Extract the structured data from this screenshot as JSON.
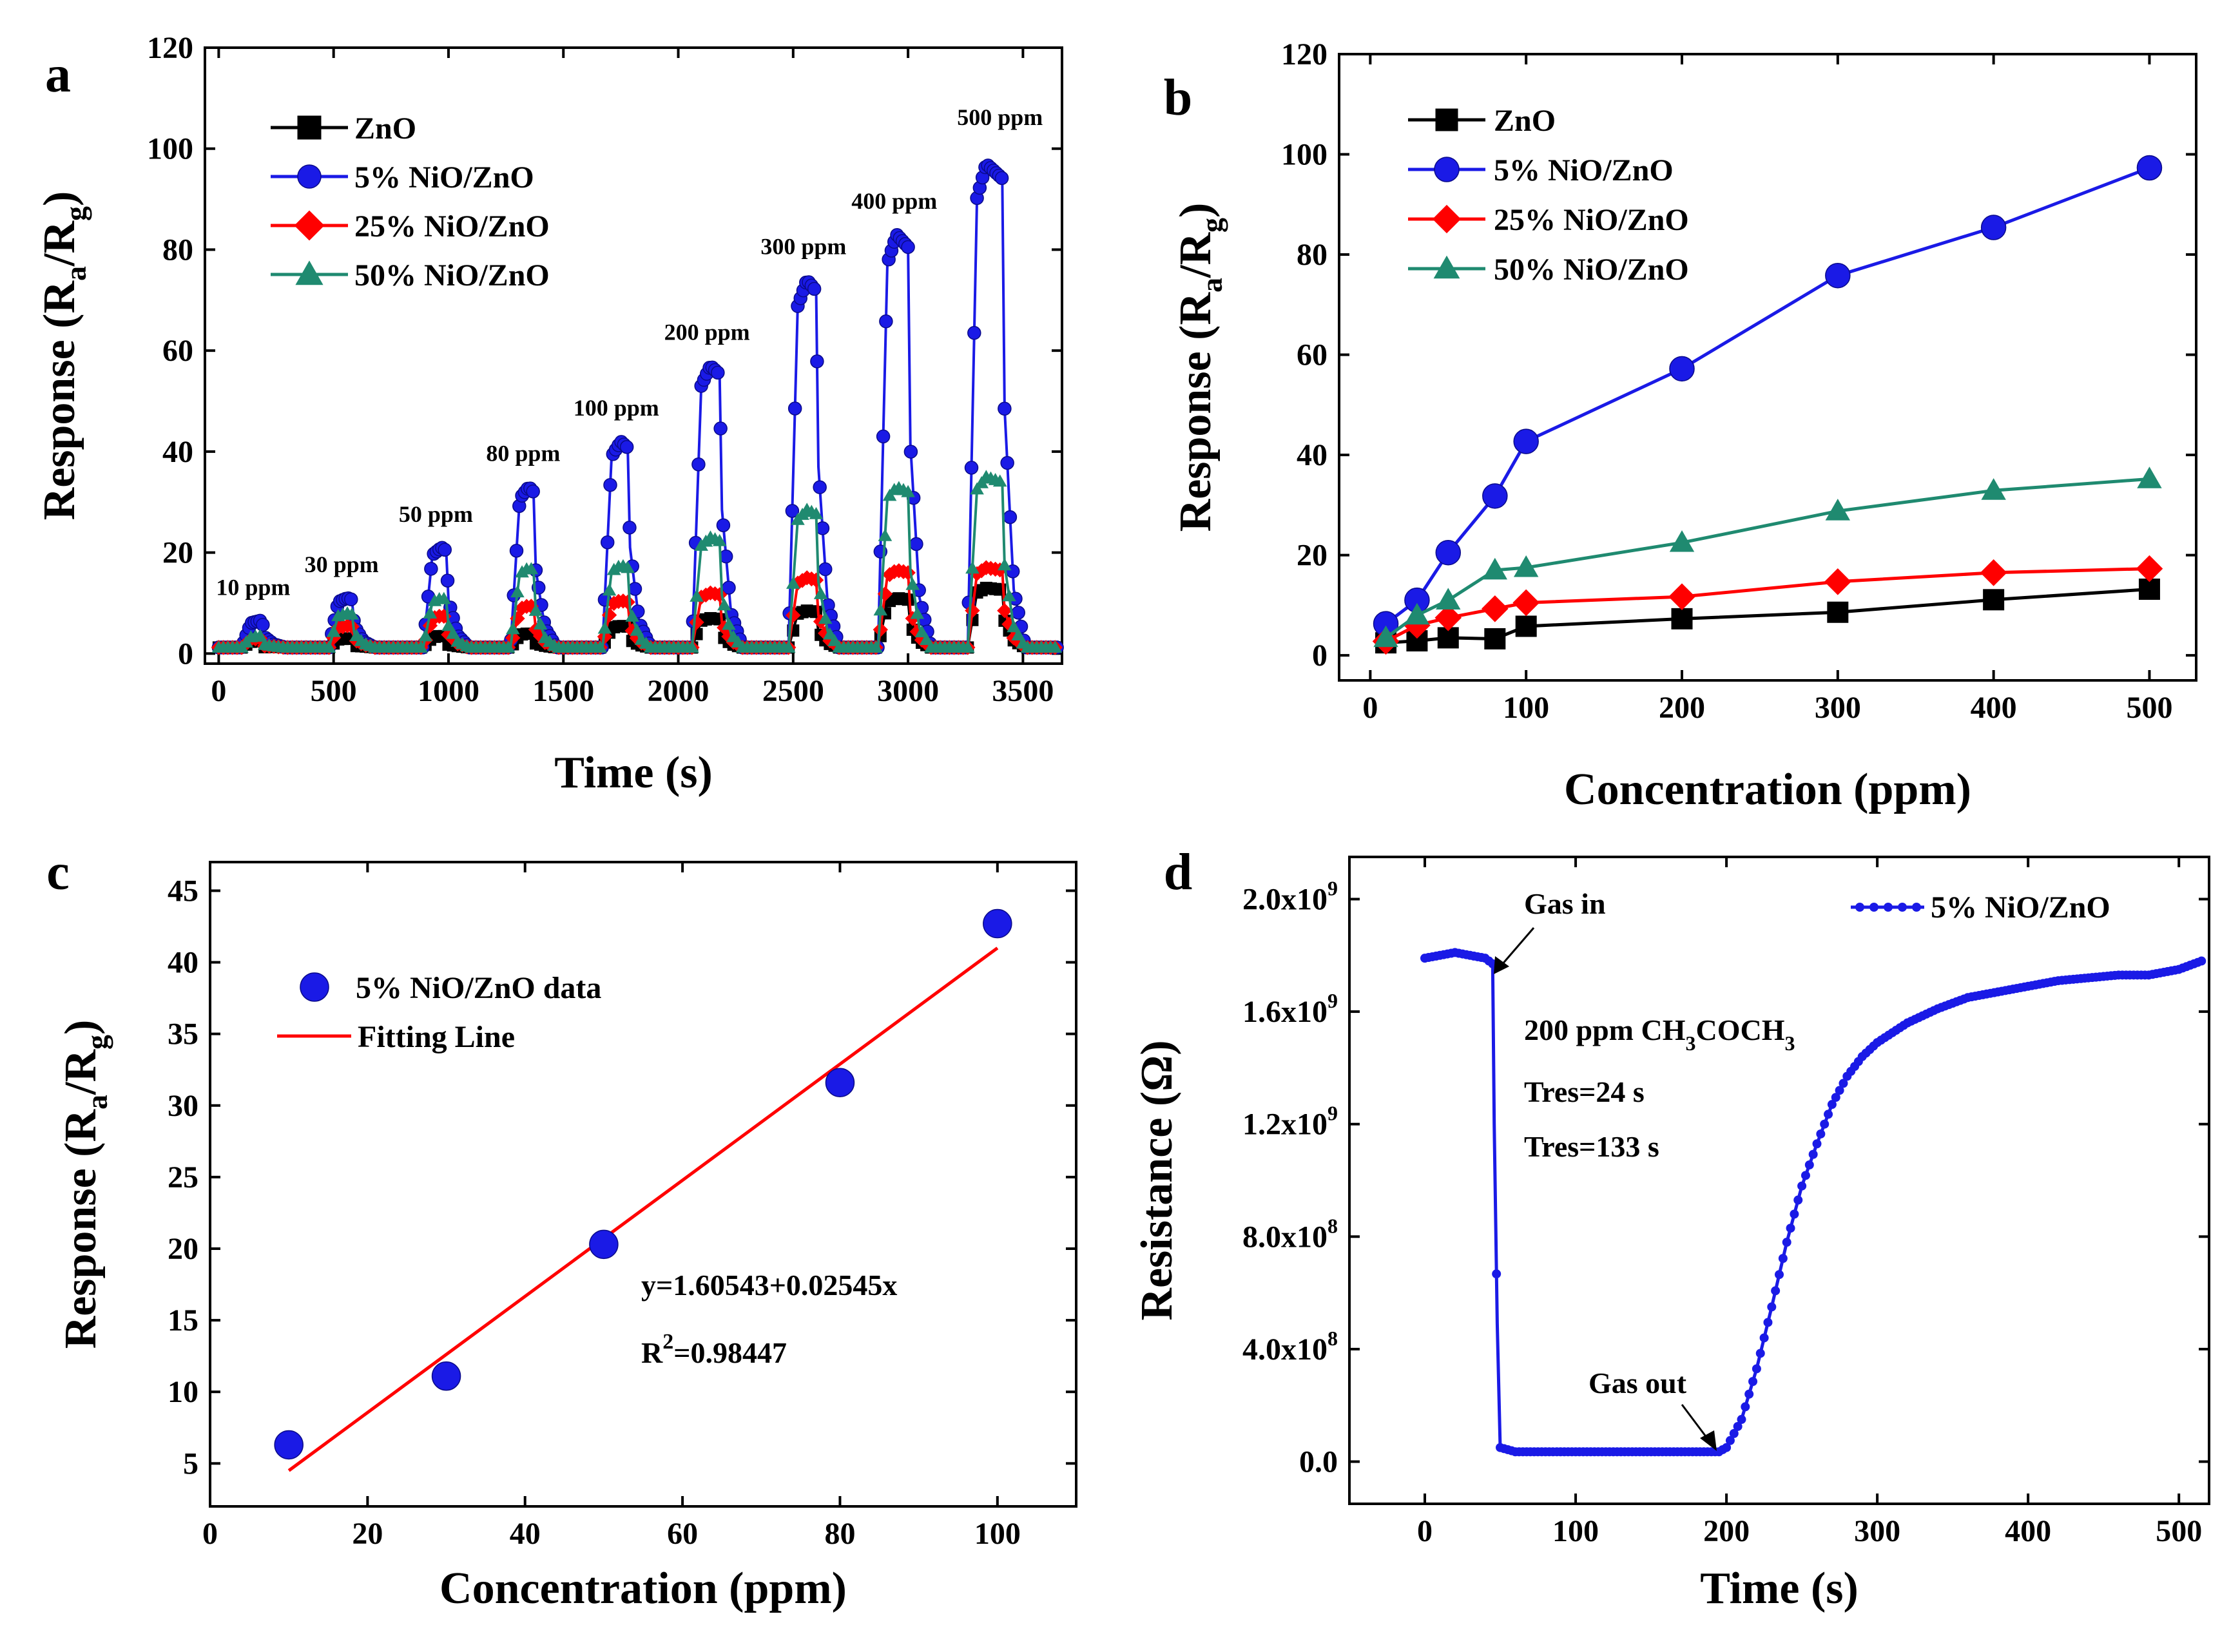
{
  "chart_data": [
    {
      "panel": "a",
      "type": "line",
      "xlabel": "Time (s)",
      "ylabel_main": "Response (R",
      "ylabel_sub1": "a",
      "ylabel_mid": "/R",
      "ylabel_sub2": "g",
      "ylabel_end": ")",
      "xlim": [
        -60,
        3670
      ],
      "ylim": [
        -2,
        120
      ],
      "x_ticks": [
        0,
        500,
        1000,
        1500,
        2000,
        2500,
        3000,
        3500
      ],
      "y_ticks": [
        0,
        20,
        40,
        60,
        80,
        100,
        120
      ],
      "pulses": [
        {
          "label": "10 ppm",
          "start": 100,
          "end": 200,
          "peaks": {
            "ZnO": 2.5,
            "5% NiO/ZnO": 6.5,
            "25% NiO/ZnO": 3,
            "50% NiO/ZnO": 3.5
          }
        },
        {
          "label": "30 ppm",
          "start": 480,
          "end": 590,
          "peaks": {
            "ZnO": 3,
            "5% NiO/ZnO": 11,
            "25% NiO/ZnO": 5.5,
            "50% NiO/ZnO": 8
          }
        },
        {
          "label": "50 ppm",
          "start": 890,
          "end": 1000,
          "peaks": {
            "ZnO": 3.5,
            "5% NiO/ZnO": 21,
            "25% NiO/ZnO": 7.5,
            "50% NiO/ZnO": 11
          }
        },
        {
          "label": "80 ppm",
          "start": 1270,
          "end": 1380,
          "peaks": {
            "ZnO": 4,
            "5% NiO/ZnO": 33,
            "25% NiO/ZnO": 9.5,
            "50% NiO/ZnO": 17
          }
        },
        {
          "label": "100 ppm",
          "start": 1670,
          "end": 1790,
          "peaks": {
            "ZnO": 5.5,
            "5% NiO/ZnO": 42,
            "25% NiO/ZnO": 10.5,
            "50% NiO/ZnO": 17.5
          }
        },
        {
          "label": "200 ppm",
          "start": 2060,
          "end": 2190,
          "peaks": {
            "ZnO": 7,
            "5% NiO/ZnO": 57,
            "25% NiO/ZnO": 12,
            "50% NiO/ZnO": 23
          }
        },
        {
          "label": "300 ppm",
          "start": 2480,
          "end": 2610,
          "peaks": {
            "ZnO": 8.5,
            "5% NiO/ZnO": 74,
            "25% NiO/ZnO": 15,
            "50% NiO/ZnO": 28.5
          }
        },
        {
          "label": "400 ppm",
          "start": 2870,
          "end": 3010,
          "peaks": {
            "ZnO": 11,
            "5% NiO/ZnO": 83,
            "25% NiO/ZnO": 16.5,
            "50% NiO/ZnO": 33
          }
        },
        {
          "label": "500 ppm",
          "start": 3260,
          "end": 3420,
          "peaks": {
            "ZnO": 13,
            "5% NiO/ZnO": 97,
            "25% NiO/ZnO": 17,
            "50% NiO/ZnO": 35
          }
        }
      ],
      "series": [
        {
          "name": "ZnO",
          "color": "#000000",
          "marker": "square"
        },
        {
          "name": "5% NiO/ZnO",
          "color": "#1a1ae6",
          "marker": "circle"
        },
        {
          "name": "25% NiO/ZnO",
          "color": "#ff0000",
          "marker": "diamond"
        },
        {
          "name": "50% NiO/ZnO",
          "color": "#1f8a70",
          "marker": "triangle"
        }
      ]
    },
    {
      "panel": "b",
      "type": "line",
      "xlabel": "Concentration (ppm)",
      "ylabel_main": "Response (R",
      "ylabel_sub1": "a",
      "ylabel_mid": "/R",
      "ylabel_sub2": "g",
      "ylabel_end": ")",
      "xlim": [
        -20,
        530
      ],
      "ylim": [
        -5,
        120
      ],
      "x_ticks": [
        0,
        100,
        200,
        300,
        400,
        500
      ],
      "y_ticks": [
        0,
        20,
        40,
        60,
        80,
        100,
        120
      ],
      "x": [
        10,
        30,
        50,
        80,
        100,
        200,
        300,
        400,
        500
      ],
      "series": [
        {
          "name": "ZnO",
          "color": "#000000",
          "marker": "square",
          "values": [
            2.5,
            2.9,
            3.5,
            3.3,
            5.8,
            7.3,
            8.6,
            11.1,
            13.2
          ]
        },
        {
          "name": "5% NiO/ZnO",
          "color": "#1a1ae6",
          "marker": "circle",
          "values": [
            6.3,
            11.0,
            20.5,
            31.8,
            42.7,
            57.2,
            75.8,
            85.4,
            97.3
          ]
        },
        {
          "name": "25% NiO/ZnO",
          "color": "#ff0000",
          "marker": "diamond",
          "values": [
            2.8,
            6.0,
            7.5,
            9.3,
            10.5,
            11.7,
            14.7,
            16.5,
            17.3
          ]
        },
        {
          "name": "50% NiO/ZnO",
          "color": "#1f8a70",
          "marker": "triangle",
          "values": [
            3.5,
            8.0,
            11.0,
            17.0,
            17.5,
            22.5,
            28.8,
            32.9,
            35.2
          ]
        }
      ]
    },
    {
      "panel": "c",
      "type": "scatter",
      "xlabel": "Concentration (ppm)",
      "ylabel_main": "Response (R",
      "ylabel_sub1": "a",
      "ylabel_mid": "/R",
      "ylabel_sub2": "g",
      "ylabel_end": ")",
      "xlim": [
        0,
        110
      ],
      "ylim": [
        2,
        47
      ],
      "x_ticks": [
        0,
        20,
        40,
        60,
        80,
        100
      ],
      "y_ticks": [
        5,
        10,
        15,
        20,
        25,
        30,
        35,
        40,
        45
      ],
      "x": [
        10,
        30,
        50,
        80,
        100
      ],
      "series": [
        {
          "name": "5% NiO/ZnO data",
          "color": "#1a1ae6",
          "marker": "circle",
          "values": [
            6.3,
            11.1,
            20.3,
            31.6,
            42.7
          ]
        }
      ],
      "fit": {
        "name": "Fitting Line",
        "color": "#ff0000",
        "x": [
          10,
          100
        ],
        "y": [
          4.5,
          41.0
        ]
      },
      "equation": "y=1.60543+0.02545x",
      "r2_prefix": "R",
      "r2_sup": "2",
      "r2_value": "=0.98447"
    },
    {
      "panel": "d",
      "type": "line",
      "xlabel": "Time (s)",
      "ylabel": "Resistance (Ω)",
      "xlim": [
        -50,
        520
      ],
      "ylim": [
        -0.15,
        2.15
      ],
      "y_unit": "x10^9 Ω",
      "x_ticks": [
        0,
        100,
        200,
        300,
        400,
        500
      ],
      "y_ticks": [
        {
          "value": 0.0,
          "base": "0.0",
          "exp": ""
        },
        {
          "value": 0.4,
          "base": "4.0x10",
          "exp": "8"
        },
        {
          "value": 0.8,
          "base": "8.0x10",
          "exp": "8"
        },
        {
          "value": 1.2,
          "base": "1.2x10",
          "exp": "9"
        },
        {
          "value": 1.6,
          "base": "1.6x10",
          "exp": "9"
        },
        {
          "value": 2.0,
          "base": "2.0x10",
          "exp": "9"
        }
      ],
      "series": [
        {
          "name": "5% NiO/ZnO",
          "color": "#1a1ae6",
          "marker": "circle",
          "x": [
            0,
            10,
            20,
            30,
            40,
            45,
            46,
            48,
            50,
            60,
            100,
            150,
            195,
            200,
            210,
            220,
            230,
            240,
            250,
            260,
            270,
            280,
            290,
            300,
            320,
            340,
            360,
            380,
            400,
            420,
            440,
            460,
            480,
            500,
            515
          ],
          "values": [
            1.79,
            1.8,
            1.81,
            1.8,
            1.79,
            1.77,
            1.2,
            0.49,
            0.05,
            0.035,
            0.035,
            0.035,
            0.035,
            0.05,
            0.15,
            0.33,
            0.55,
            0.78,
            0.98,
            1.13,
            1.27,
            1.37,
            1.44,
            1.49,
            1.56,
            1.61,
            1.65,
            1.67,
            1.69,
            1.71,
            1.72,
            1.73,
            1.73,
            1.75,
            1.78
          ]
        }
      ],
      "annotations": {
        "gas_in": "Gas in",
        "gas_out": "Gas out",
        "cond_pre": "200 ppm CH",
        "cond_s1": "3",
        "cond_mid": "COCH",
        "cond_s2": "3",
        "tres1": "Tres=24 s",
        "tres2": "Tres=133 s"
      }
    }
  ]
}
